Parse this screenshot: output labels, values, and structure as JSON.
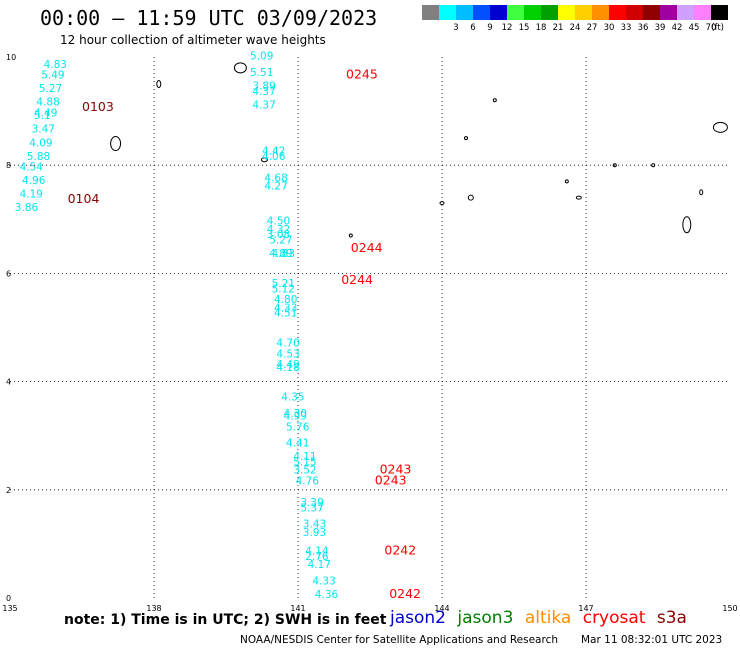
{
  "header": {
    "title": "00:00 – 11:59 UTC 03/09/2023",
    "subtitle": "12 hour collection of altimeter wave heights"
  },
  "colorbar": {
    "bins": [
      {
        "label": "",
        "color": "#808080"
      },
      {
        "label": "3",
        "color": "#00ffff"
      },
      {
        "label": "6",
        "color": "#00bfff"
      },
      {
        "label": "9",
        "color": "#0050ff"
      },
      {
        "label": "12",
        "color": "#0000d0"
      },
      {
        "label": "15",
        "color": "#40ff40"
      },
      {
        "label": "18",
        "color": "#00d000"
      },
      {
        "label": "21",
        "color": "#00a000"
      },
      {
        "label": "24",
        "color": "#ffff00"
      },
      {
        "label": "27",
        "color": "#ffd000"
      },
      {
        "label": "30",
        "color": "#ff9000"
      },
      {
        "label": "33",
        "color": "#ff0000"
      },
      {
        "label": "36",
        "color": "#d00000"
      },
      {
        "label": "39",
        "color": "#900000"
      },
      {
        "label": "42",
        "color": "#a000a0"
      },
      {
        "label": "45",
        "color": "#d0a0ff"
      },
      {
        "label": "70",
        "color": "#ff80ff"
      },
      {
        "label": "",
        "color": "#000000"
      }
    ],
    "unit": "(ft)"
  },
  "map": {
    "lon_range": [
      135,
      150
    ],
    "lat_range": [
      0,
      10
    ],
    "lon_ticks": [
      "135",
      "138",
      "141",
      "144",
      "147",
      "150"
    ],
    "lat_ticks": [
      "0",
      "2",
      "4",
      "6",
      "8",
      "10"
    ],
    "wave_color": "#00e5ee",
    "track_labels": [
      {
        "text": "0103",
        "lon": 136.5,
        "lat": 9.0,
        "color": "#8b0000"
      },
      {
        "text": "0104",
        "lon": 136.2,
        "lat": 7.3,
        "color": "#8b0000"
      },
      {
        "text": "0245",
        "lon": 142.0,
        "lat": 9.6,
        "color": "#ff0000"
      },
      {
        "text": "0244",
        "lon": 142.1,
        "lat": 6.4,
        "color": "#ff0000"
      },
      {
        "text": "0244",
        "lon": 141.9,
        "lat": 5.8,
        "color": "#ff0000"
      },
      {
        "text": "0243",
        "lon": 142.7,
        "lat": 2.3,
        "color": "#ff0000"
      },
      {
        "text": "0243",
        "lon": 142.6,
        "lat": 2.1,
        "color": "#ff0000"
      },
      {
        "text": "0242",
        "lon": 142.8,
        "lat": 0.8,
        "color": "#ff0000"
      },
      {
        "text": "0242",
        "lon": 142.9,
        "lat": 0.0,
        "color": "#ff0000"
      }
    ],
    "wave_labels": [
      {
        "text": "4.83",
        "lon": 135.7,
        "lat": 9.8
      },
      {
        "text": "5.49",
        "lon": 135.65,
        "lat": 9.6
      },
      {
        "text": "5.27",
        "lon": 135.6,
        "lat": 9.35
      },
      {
        "text": "4.88",
        "lon": 135.55,
        "lat": 9.1
      },
      {
        "text": "4.49",
        "lon": 135.5,
        "lat": 8.9
      },
      {
        "text": "5.1",
        "lon": 135.5,
        "lat": 8.85
      },
      {
        "text": "3.47",
        "lon": 135.45,
        "lat": 8.6
      },
      {
        "text": "4.09",
        "lon": 135.4,
        "lat": 8.35
      },
      {
        "text": "5.88",
        "lon": 135.35,
        "lat": 8.1
      },
      {
        "text": "4.54",
        "lon": 135.2,
        "lat": 7.9
      },
      {
        "text": "4.96",
        "lon": 135.25,
        "lat": 7.65
      },
      {
        "text": "4.19",
        "lon": 135.2,
        "lat": 7.4
      },
      {
        "text": "3.86",
        "lon": 135.1,
        "lat": 7.15
      },
      {
        "text": "5.09",
        "lon": 140.0,
        "lat": 9.95
      },
      {
        "text": "5.51",
        "lon": 140.0,
        "lat": 9.65
      },
      {
        "text": "3.89",
        "lon": 140.05,
        "lat": 9.4
      },
      {
        "text": "4.37",
        "lon": 140.05,
        "lat": 9.3
      },
      {
        "text": "4.37",
        "lon": 140.05,
        "lat": 9.05
      },
      {
        "text": "4.42",
        "lon": 140.25,
        "lat": 8.2
      },
      {
        "text": "4.06",
        "lon": 140.25,
        "lat": 8.1
      },
      {
        "text": "4.68",
        "lon": 140.3,
        "lat": 7.7
      },
      {
        "text": "4.27",
        "lon": 140.3,
        "lat": 7.55
      },
      {
        "text": "4.50",
        "lon": 140.35,
        "lat": 6.9
      },
      {
        "text": "4.32",
        "lon": 140.35,
        "lat": 6.75
      },
      {
        "text": "3.08",
        "lon": 140.35,
        "lat": 6.65
      },
      {
        "text": "5.27",
        "lon": 140.4,
        "lat": 6.55
      },
      {
        "text": "4.89",
        "lon": 140.4,
        "lat": 6.3
      },
      {
        "text": "4.83",
        "lon": 140.45,
        "lat": 6.3
      },
      {
        "text": "5.21",
        "lon": 140.45,
        "lat": 5.75
      },
      {
        "text": "5.12",
        "lon": 140.45,
        "lat": 5.65
      },
      {
        "text": "4.80",
        "lon": 140.5,
        "lat": 5.45
      },
      {
        "text": "4.33",
        "lon": 140.5,
        "lat": 5.3
      },
      {
        "text": "4.51",
        "lon": 140.5,
        "lat": 5.2
      },
      {
        "text": "4.70",
        "lon": 140.55,
        "lat": 4.65
      },
      {
        "text": "4.53",
        "lon": 140.55,
        "lat": 4.45
      },
      {
        "text": "4.49",
        "lon": 140.55,
        "lat": 4.25
      },
      {
        "text": "4.18",
        "lon": 140.55,
        "lat": 4.2
      },
      {
        "text": "4.35",
        "lon": 140.65,
        "lat": 3.65
      },
      {
        "text": "4.30",
        "lon": 140.7,
        "lat": 3.35
      },
      {
        "text": "4.99",
        "lon": 140.7,
        "lat": 3.3
      },
      {
        "text": "5.76",
        "lon": 140.75,
        "lat": 3.1
      },
      {
        "text": "4.41",
        "lon": 140.75,
        "lat": 2.8
      },
      {
        "text": "4.11",
        "lon": 140.9,
        "lat": 2.55
      },
      {
        "text": "5.15",
        "lon": 140.9,
        "lat": 2.45
      },
      {
        "text": "3.52",
        "lon": 140.9,
        "lat": 2.3
      },
      {
        "text": "4.76",
        "lon": 140.95,
        "lat": 2.1
      },
      {
        "text": "3.39",
        "lon": 141.05,
        "lat": 1.7
      },
      {
        "text": "5.37",
        "lon": 141.05,
        "lat": 1.6
      },
      {
        "text": "3.43",
        "lon": 141.1,
        "lat": 1.3
      },
      {
        "text": "3.93",
        "lon": 141.1,
        "lat": 1.15
      },
      {
        "text": "4.14",
        "lon": 141.15,
        "lat": 0.8
      },
      {
        "text": "2.76",
        "lon": 141.15,
        "lat": 0.7
      },
      {
        "text": "4.17",
        "lon": 141.2,
        "lat": 0.55
      },
      {
        "text": "4.33",
        "lon": 141.3,
        "lat": 0.25
      },
      {
        "text": "4.36",
        "lon": 141.35,
        "lat": 0.0
      }
    ]
  },
  "legend": {
    "note": "note: 1) Time is in UTC; 2) SWH is in feet",
    "satellites": [
      {
        "name": "jason2",
        "color": "#0000cc"
      },
      {
        "name": "jason3",
        "color": "#008000"
      },
      {
        "name": "altika",
        "color": "#ff8c00"
      },
      {
        "name": "cryosat",
        "color": "#ff0000"
      },
      {
        "name": "s3a",
        "color": "#8b0000"
      }
    ]
  },
  "footer": {
    "credit": "NOAA/NESDIS Center for Satellite Applications and Research",
    "timestamp": "Mar 11 08:32:01 UTC 2023"
  }
}
